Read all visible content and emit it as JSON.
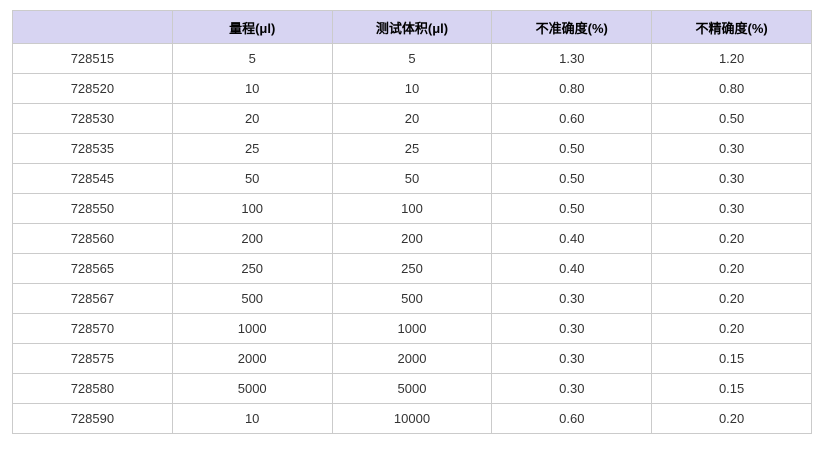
{
  "chart_data": {
    "type": "table",
    "columns": [
      "",
      "量程(μl)",
      "测试体积(μl)",
      "不准确度(%)",
      "不精确度(%)"
    ],
    "rows": [
      [
        "728515",
        "5",
        "5",
        "1.30",
        "1.20"
      ],
      [
        "728520",
        "10",
        "10",
        "0.80",
        "0.80"
      ],
      [
        "728530",
        "20",
        "20",
        "0.60",
        "0.50"
      ],
      [
        "728535",
        "25",
        "25",
        "0.50",
        "0.30"
      ],
      [
        "728545",
        "50",
        "50",
        "0.50",
        "0.30"
      ],
      [
        "728550",
        "100",
        "100",
        "0.50",
        "0.30"
      ],
      [
        "728560",
        "200",
        "200",
        "0.40",
        "0.20"
      ],
      [
        "728565",
        "250",
        "250",
        "0.40",
        "0.20"
      ],
      [
        "728567",
        "500",
        "500",
        "0.30",
        "0.20"
      ],
      [
        "728570",
        "1000",
        "1000",
        "0.30",
        "0.20"
      ],
      [
        "728575",
        "2000",
        "2000",
        "0.30",
        "0.15"
      ],
      [
        "728580",
        "5000",
        "5000",
        "0.30",
        "0.15"
      ],
      [
        "728590",
        "10",
        "10000",
        "0.60",
        "0.20"
      ]
    ],
    "layout": {
      "grid": true,
      "column_count": 5,
      "row_count": 13,
      "text_align": "center"
    }
  },
  "colors": {
    "header_bg": "#d7d4f2",
    "border": "#cbcbcb",
    "header_text": "#000000",
    "cell_text": "#333333",
    "page_bg": "#ffffff"
  }
}
